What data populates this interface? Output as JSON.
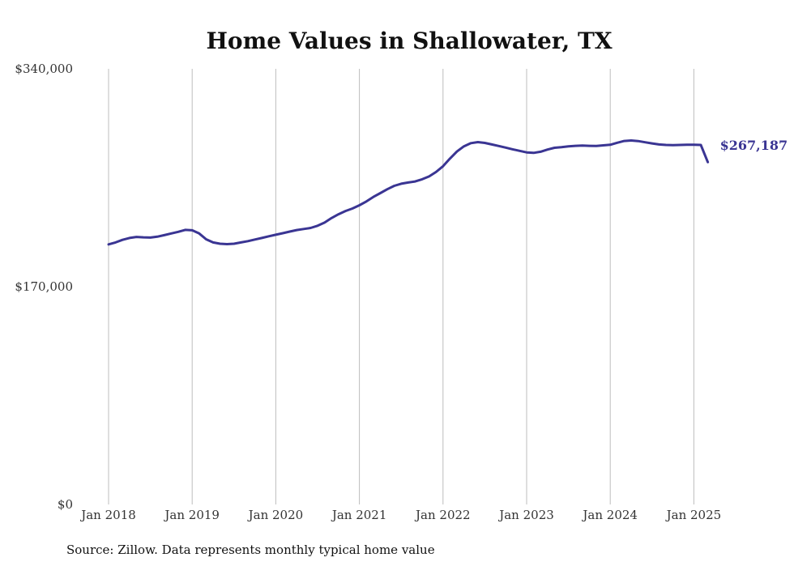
{
  "chart_data": {
    "type": "line",
    "title": "Home Values in Shallowater, TX",
    "source": "Source: Zillow. Data represents monthly typical home value",
    "ylim": [
      0,
      340000
    ],
    "y_ticks": [
      {
        "value": 0,
        "label": "$0"
      },
      {
        "value": 170000,
        "label": "$170,000"
      },
      {
        "value": 340000,
        "label": "$340,000"
      }
    ],
    "x_ticks": [
      {
        "value": 2018,
        "label": "Jan 2018"
      },
      {
        "value": 2019,
        "label": "Jan 2019"
      },
      {
        "value": 2020,
        "label": "Jan 2020"
      },
      {
        "value": 2021,
        "label": "Jan 2021"
      },
      {
        "value": 2022,
        "label": "Jan 2022"
      },
      {
        "value": 2023,
        "label": "Jan 2023"
      },
      {
        "value": 2024,
        "label": "Jan 2024"
      },
      {
        "value": 2025,
        "label": "Jan 2025"
      }
    ],
    "grid": "vertical",
    "color": "#3a3593",
    "end_label": "$267,187",
    "series": [
      {
        "x": [
          "2018-01",
          "2018-02",
          "2018-03",
          "2018-04",
          "2018-05",
          "2018-06",
          "2018-07",
          "2018-08",
          "2018-09",
          "2018-10",
          "2018-11",
          "2018-12",
          "2019-01",
          "2019-02",
          "2019-03",
          "2019-04",
          "2019-05",
          "2019-06",
          "2019-07",
          "2019-08",
          "2019-09",
          "2019-10",
          "2019-11",
          "2019-12",
          "2020-01",
          "2020-02",
          "2020-03",
          "2020-04",
          "2020-05",
          "2020-06",
          "2020-07",
          "2020-08",
          "2020-09",
          "2020-10",
          "2020-11",
          "2020-12",
          "2021-01",
          "2021-02",
          "2021-03",
          "2021-04",
          "2021-05",
          "2021-06",
          "2021-07",
          "2021-08",
          "2021-09",
          "2021-10",
          "2021-11",
          "2021-12",
          "2022-01",
          "2022-02",
          "2022-03",
          "2022-04",
          "2022-05",
          "2022-06",
          "2022-07",
          "2022-08",
          "2022-09",
          "2022-10",
          "2022-11",
          "2022-12",
          "2023-01",
          "2023-02",
          "2023-03",
          "2023-04",
          "2023-05",
          "2023-06",
          "2023-07",
          "2023-08",
          "2023-09",
          "2023-10",
          "2023-11",
          "2023-12",
          "2024-01",
          "2024-02",
          "2024-03",
          "2024-04",
          "2024-05",
          "2024-06",
          "2024-07",
          "2024-08",
          "2024-09",
          "2024-10",
          "2024-11",
          "2024-12",
          "2025-01",
          "2025-02",
          "2025-03"
        ],
        "values": [
          203000,
          204500,
          206500,
          208000,
          208800,
          208500,
          208300,
          209000,
          210200,
          211500,
          212800,
          214300,
          214000,
          211500,
          207000,
          204500,
          203500,
          203200,
          203500,
          204500,
          205500,
          206800,
          208000,
          209300,
          210500,
          211700,
          213000,
          214200,
          215000,
          215800,
          217500,
          220000,
          223500,
          226500,
          229000,
          231000,
          233500,
          236500,
          240000,
          243000,
          246000,
          248700,
          250300,
          251300,
          252100,
          253800,
          256000,
          259500,
          264000,
          270000,
          275500,
          279500,
          282000,
          282800,
          282200,
          281000,
          279800,
          278500,
          277200,
          276000,
          274800,
          274400,
          275300,
          277000,
          278400,
          278900,
          279500,
          279900,
          280100,
          279900,
          279800,
          280300,
          280700,
          282300,
          283700,
          284100,
          283600,
          282700,
          281800,
          281000,
          280600,
          280500,
          280600,
          280800,
          280800,
          280600,
          267187
        ]
      }
    ]
  }
}
